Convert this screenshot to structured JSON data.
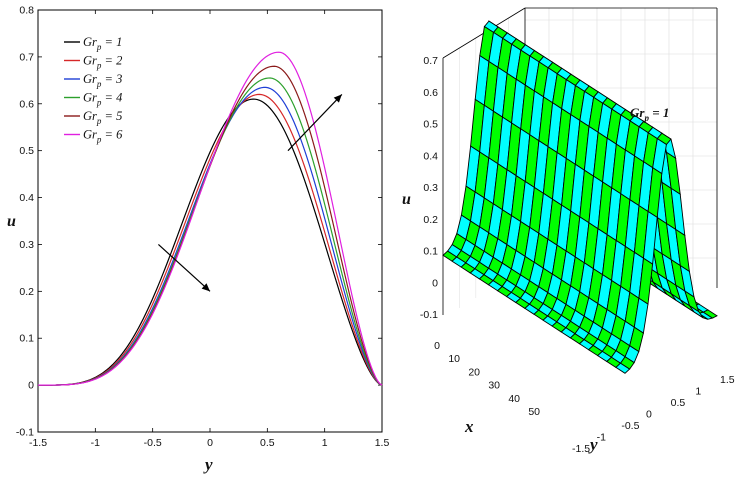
{
  "chart_data": [
    {
      "type": "line",
      "xlabel": "y",
      "ylabel": "u",
      "xlim": [
        -1.5,
        1.5
      ],
      "ylim": [
        -0.1,
        0.8
      ],
      "x_ticks": [
        "-1.5",
        "-1",
        "-0.5",
        "0",
        "0.5",
        "1",
        "1.5"
      ],
      "y_ticks": [
        "-0.1",
        "0",
        "0.1",
        "0.2",
        "0.3",
        "0.4",
        "0.5",
        "0.6",
        "0.7",
        "0.8"
      ],
      "legend_position": "top-left",
      "series": [
        {
          "name": "Grp = 1",
          "legend_main": "Gr",
          "legend_sub": "p",
          "legend_rest": " = 1",
          "color": "#000000",
          "peak_y": 0.38,
          "peak_u": 0.61
        },
        {
          "name": "Grp = 2",
          "legend_main": "Gr",
          "legend_sub": "p",
          "legend_rest": " = 2",
          "color": "#d62728",
          "peak_y": 0.43,
          "peak_u": 0.62
        },
        {
          "name": "Grp = 3",
          "legend_main": "Gr",
          "legend_sub": "p",
          "legend_rest": " = 3",
          "color": "#1f3fd6",
          "peak_y": 0.48,
          "peak_u": 0.635
        },
        {
          "name": "Grp = 4",
          "legend_main": "Gr",
          "legend_sub": "p",
          "legend_rest": " = 4",
          "color": "#2ca02c",
          "peak_y": 0.52,
          "peak_u": 0.655
        },
        {
          "name": "Grp = 5",
          "legend_main": "Gr",
          "legend_sub": "p",
          "legend_rest": " = 5",
          "color": "#8b1a1a",
          "peak_y": 0.56,
          "peak_u": 0.68
        },
        {
          "name": "Grp = 6",
          "legend_main": "Gr",
          "legend_sub": "p",
          "legend_rest": " = 6",
          "color": "#e020e0",
          "peak_y": 0.6,
          "peak_u": 0.71
        }
      ],
      "arrows": [
        {
          "from": [
            -0.45,
            0.3
          ],
          "to": [
            0.0,
            0.2
          ]
        },
        {
          "from": [
            0.68,
            0.5
          ],
          "to": [
            1.15,
            0.62
          ]
        }
      ]
    },
    {
      "type": "surface",
      "zlabel": "u",
      "xlabel": "x",
      "ylabel": "y",
      "z_ticks": [
        "-0.1",
        "0",
        "0.1",
        "0.2",
        "0.3",
        "0.4",
        "0.5",
        "0.6",
        "0.7"
      ],
      "x_ticks": [
        "0",
        "10",
        "20",
        "30",
        "40",
        "50"
      ],
      "y_ticks": [
        "-1.5",
        "-1",
        "-0.5",
        "0",
        "0.5",
        "1",
        "1.5"
      ],
      "zlim": [
        -0.1,
        0.7
      ],
      "annotation": {
        "main": "Gr",
        "sub": "p",
        "rest": " = 1"
      },
      "colors": {
        "face_a": "#00ff00",
        "face_b": "#00ffff",
        "edge": "#000000"
      }
    }
  ]
}
